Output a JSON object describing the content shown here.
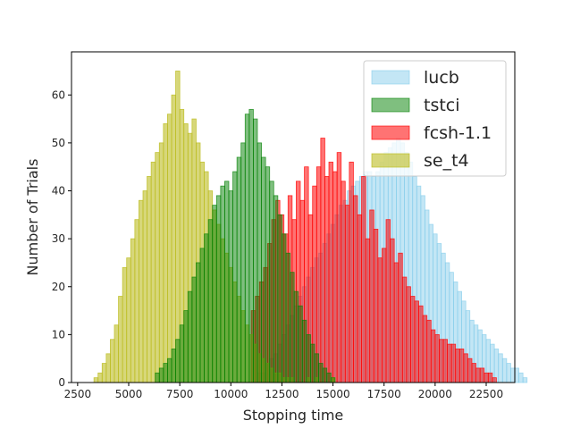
{
  "chart_data": {
    "type": "bar",
    "xlabel": "Stopping time",
    "ylabel": "Number of Trials",
    "xlim": [
      2200,
      23900
    ],
    "ylim": [
      0,
      69
    ],
    "x_ticks": [
      2500,
      5000,
      7500,
      10000,
      12500,
      15000,
      17500,
      20000,
      22500
    ],
    "x_tick_labels": [
      "2500",
      "5000",
      "7500",
      "10000",
      "12500",
      "15000",
      "17500",
      "20000",
      "22500"
    ],
    "y_ticks": [
      0,
      10,
      20,
      30,
      40,
      50,
      60
    ],
    "y_tick_labels": [
      "0",
      "10",
      "20",
      "30",
      "40",
      "50",
      "60"
    ],
    "legend_position": "top-right",
    "series": [
      {
        "name": "lucb",
        "color": "#87ceeb",
        "edge_color": "#87ceeb",
        "opacity": 0.5,
        "bin_start": 11300,
        "bin_width": 200,
        "values": [
          2,
          2,
          4,
          5,
          6,
          8,
          10,
          12,
          14,
          16,
          18,
          20,
          22,
          24,
          26,
          27,
          29,
          31,
          33,
          35,
          37,
          38,
          40,
          41,
          42,
          43,
          44,
          44,
          43,
          44,
          46,
          48,
          49,
          50,
          51,
          50,
          48,
          46,
          43,
          41,
          39,
          36,
          33,
          31,
          29,
          27,
          25,
          23,
          21,
          19,
          17,
          15,
          13,
          12,
          11,
          10,
          9,
          8,
          7,
          6,
          5,
          4,
          3,
          3,
          2,
          1
        ]
      },
      {
        "name": "fcsh-1.1",
        "color": "#ff0000",
        "edge_color": "#ff0000",
        "opacity": 0.55,
        "bin_start": 11000,
        "bin_width": 200,
        "values": [
          15,
          18,
          21,
          24,
          29,
          34,
          38,
          35,
          31,
          39,
          34,
          42,
          38,
          45,
          35,
          41,
          45,
          51,
          43,
          46,
          44,
          48,
          42,
          37,
          46,
          39,
          35,
          43,
          30,
          36,
          32,
          26,
          28,
          34,
          30,
          25,
          27,
          22,
          20,
          18,
          17,
          16,
          14,
          13,
          11,
          10,
          9,
          9,
          8,
          8,
          7,
          7,
          6,
          5,
          4,
          3,
          3,
          2,
          2,
          1
        ]
      },
      {
        "name": "se_t4",
        "color": "#bcbd22",
        "edge_color": "#bcbd22",
        "opacity": 0.6,
        "bin_start": 3300,
        "bin_width": 200,
        "values": [
          1,
          2,
          4,
          6,
          9,
          12,
          18,
          24,
          26,
          30,
          34,
          38,
          40,
          43,
          46,
          48,
          50,
          54,
          56,
          60,
          65,
          57,
          54,
          52,
          55,
          50,
          46,
          44,
          40,
          36,
          33,
          30,
          27,
          24,
          21,
          18,
          15,
          12,
          10,
          8,
          6,
          5,
          4,
          3,
          2,
          2,
          1,
          1,
          1,
          0,
          0,
          0,
          1,
          0,
          1,
          0,
          0,
          0,
          1
        ]
      },
      {
        "name": "tstci",
        "color": "#008000",
        "edge_color": "#008000",
        "opacity": 0.5,
        "bin_start": 6300,
        "bin_width": 200,
        "values": [
          2,
          3,
          4,
          5,
          7,
          9,
          12,
          15,
          19,
          22,
          25,
          28,
          31,
          34,
          37,
          39,
          41,
          42,
          40,
          44,
          47,
          50,
          56,
          57,
          55,
          50,
          47,
          45,
          42,
          39,
          35,
          31,
          27,
          23,
          19,
          16,
          13,
          10,
          8,
          6,
          4,
          3,
          2,
          1
        ]
      }
    ]
  }
}
